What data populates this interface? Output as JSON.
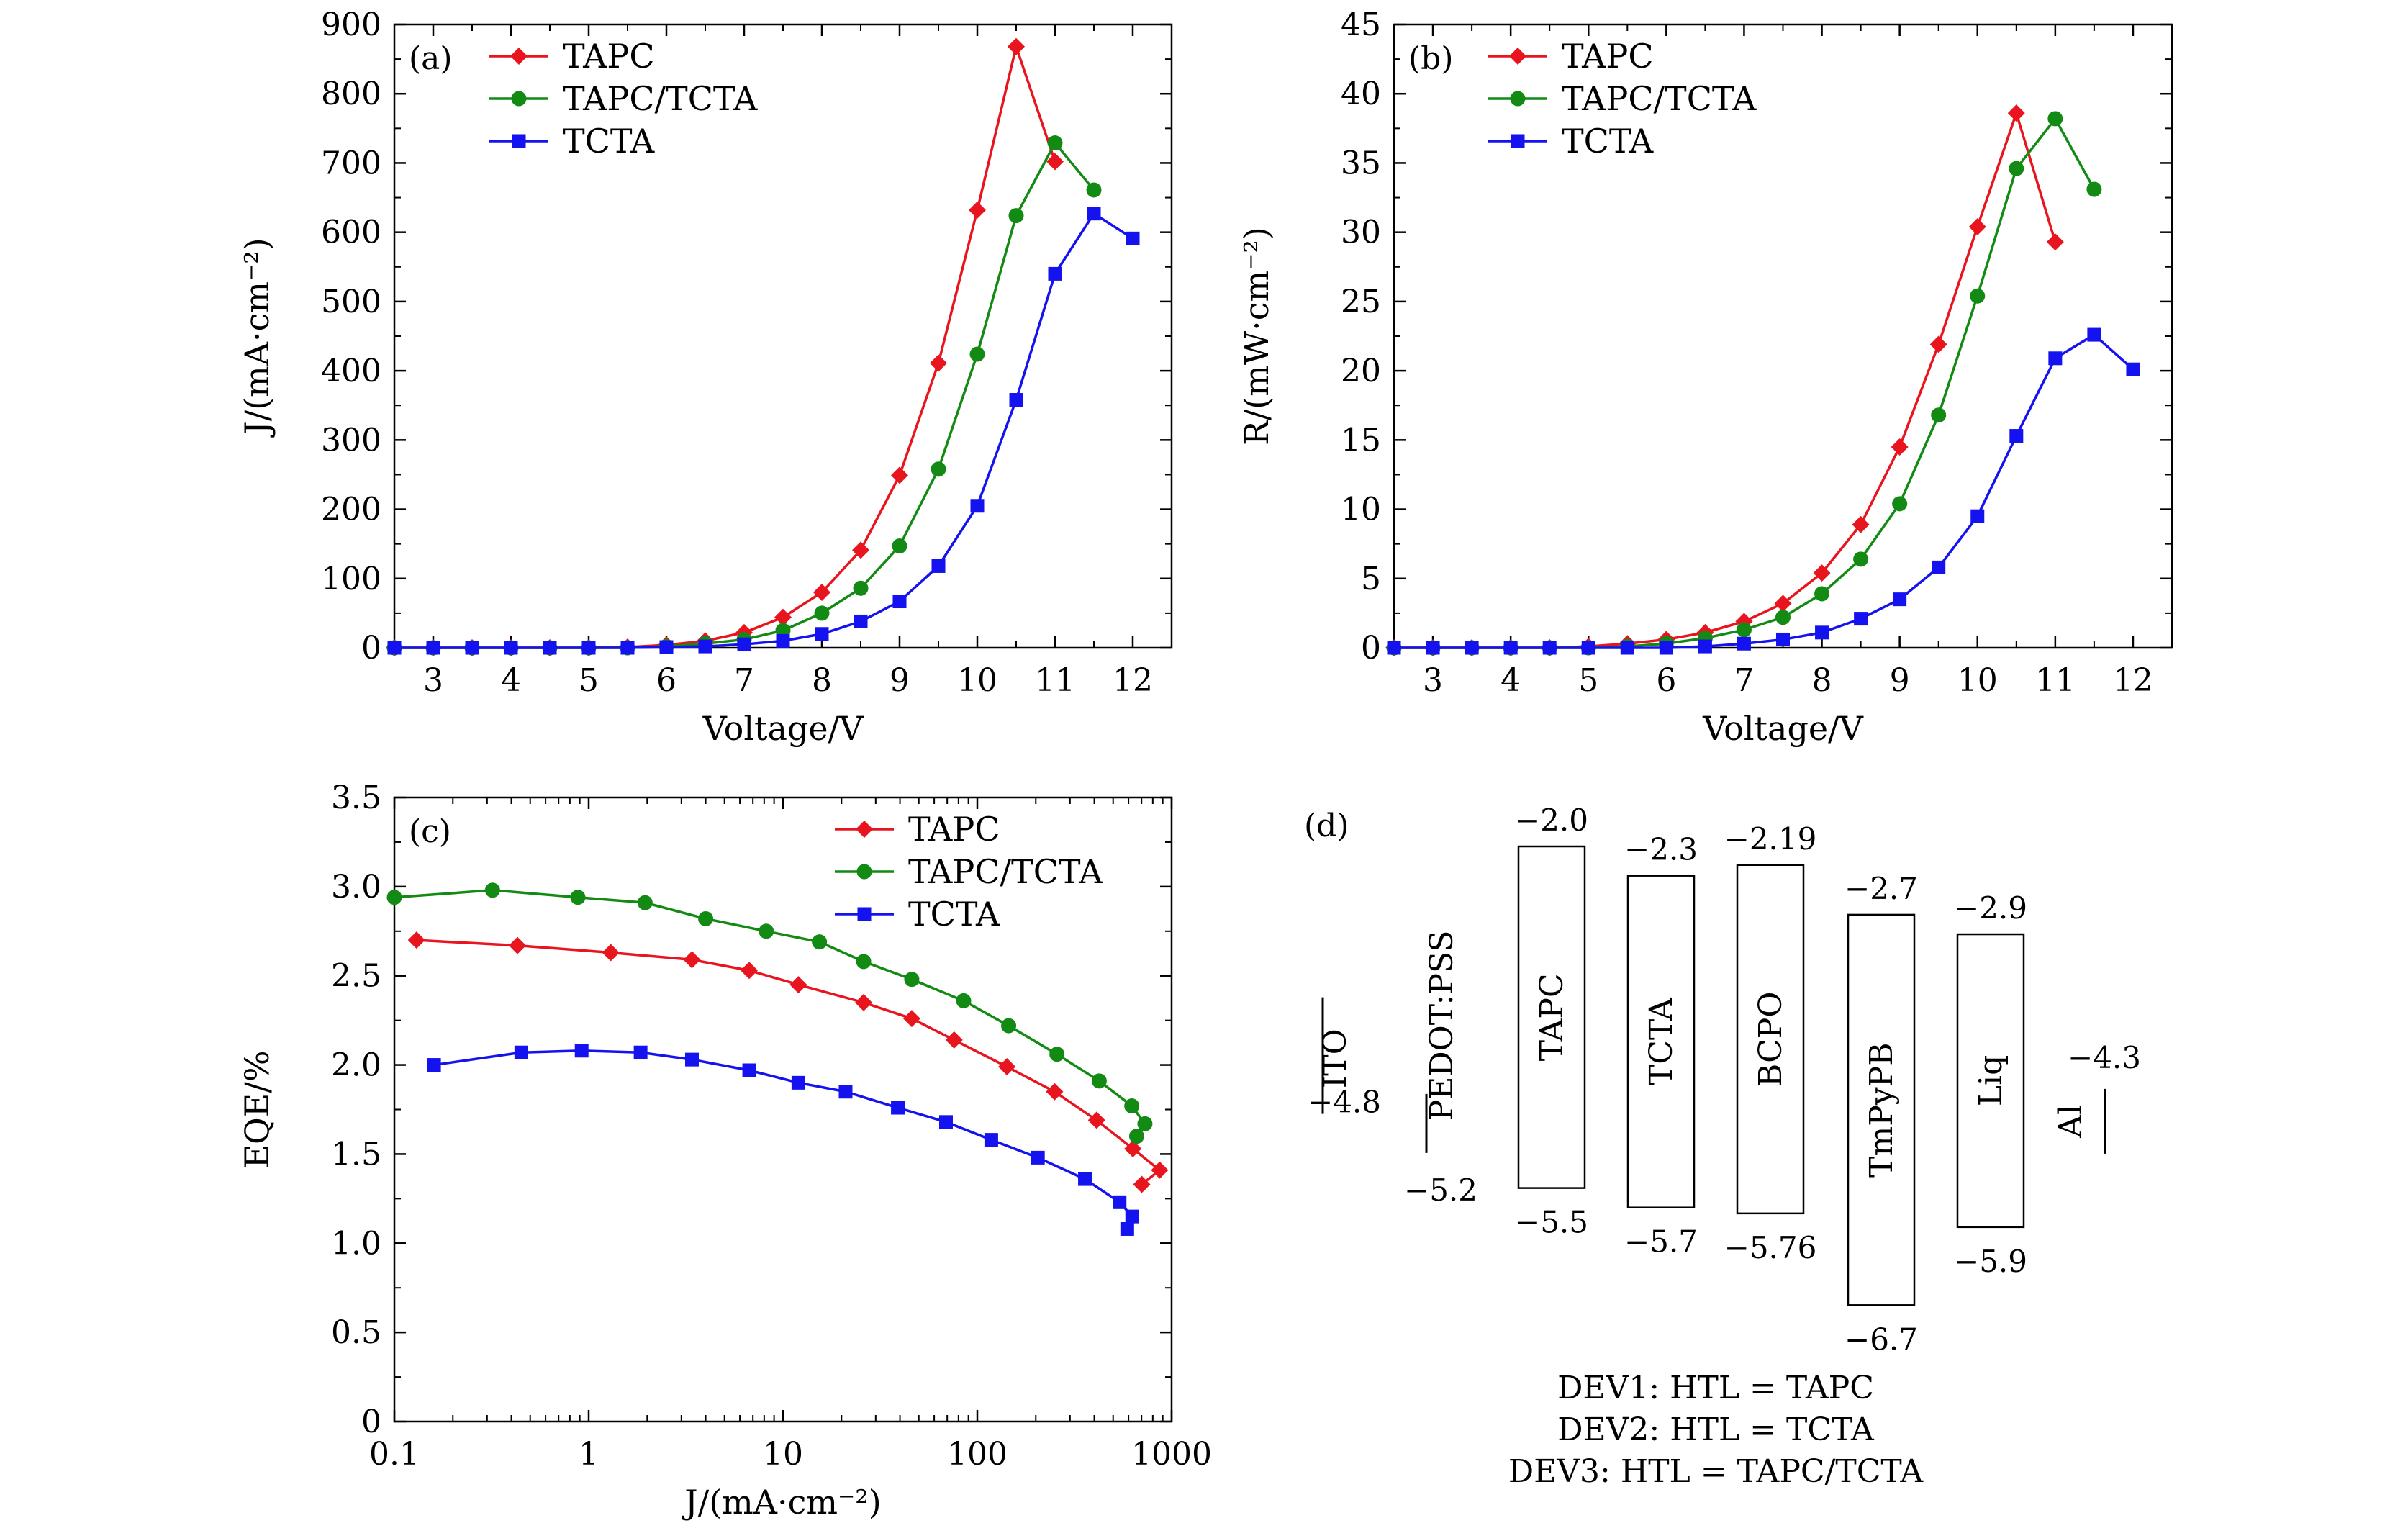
{
  "chart_data": [
    {
      "type": "line",
      "panel_label": "(a)",
      "xlabel": "Voltage/V",
      "ylabel": "J/(mA·cm⁻²)",
      "xlim": [
        2.5,
        12.5
      ],
      "ylim": [
        0,
        900
      ],
      "xticks": [
        "3",
        "4",
        "5",
        "6",
        "7",
        "8",
        "9",
        "10",
        "11",
        "12"
      ],
      "yticks": [
        "0",
        "100",
        "200",
        "300",
        "400",
        "500",
        "600",
        "700",
        "800",
        "900"
      ],
      "legend": "top-left",
      "series": [
        {
          "name": "TAPC",
          "color": "#e8141e",
          "marker": "diamond",
          "x": [
            2.5,
            3,
            3.5,
            4,
            4.5,
            5,
            5.5,
            6,
            6.5,
            7,
            7.5,
            8,
            8.5,
            9,
            9.5,
            10,
            10.5,
            11
          ],
          "y": [
            0,
            0,
            0,
            0,
            0,
            0,
            1,
            4,
            10,
            22,
            44,
            80,
            141,
            249,
            411,
            632,
            868,
            702
          ]
        },
        {
          "name": "TAPC/TCTA",
          "color": "#128a14",
          "marker": "circle",
          "x": [
            2.5,
            3,
            3.5,
            4,
            4.5,
            5,
            5.5,
            6,
            6.5,
            7,
            7.5,
            8,
            8.5,
            9,
            9.5,
            10,
            10.5,
            11,
            11.5
          ],
          "y": [
            0,
            0,
            0,
            0,
            0,
            0,
            0,
            2,
            6,
            12,
            25,
            50,
            86,
            147,
            258,
            424,
            624,
            729,
            661
          ]
        },
        {
          "name": "TCTA",
          "color": "#1512f0",
          "marker": "square",
          "x": [
            2.5,
            3,
            3.5,
            4,
            4.5,
            5,
            5.5,
            6,
            6.5,
            7,
            7.5,
            8,
            8.5,
            9,
            9.5,
            10,
            10.5,
            11,
            11.5,
            12
          ],
          "y": [
            0,
            0,
            0,
            0,
            0,
            0,
            0,
            1,
            2,
            5,
            10,
            20,
            38,
            67,
            118,
            205,
            358,
            540,
            627,
            591
          ]
        }
      ]
    },
    {
      "type": "line",
      "panel_label": "(b)",
      "xlabel": "Voltage/V",
      "ylabel": "R/(mW·cm⁻²)",
      "xlim": [
        2.5,
        12.5
      ],
      "ylim": [
        0,
        45
      ],
      "xticks": [
        "3",
        "4",
        "5",
        "6",
        "7",
        "8",
        "9",
        "10",
        "11",
        "12"
      ],
      "yticks": [
        "0",
        "5",
        "10",
        "15",
        "20",
        "25",
        "30",
        "35",
        "40",
        "45"
      ],
      "legend": "top-left",
      "series": [
        {
          "name": "TAPC",
          "color": "#e8141e",
          "marker": "diamond",
          "x": [
            2.5,
            3,
            3.5,
            4,
            4.5,
            5,
            5.5,
            6,
            6.5,
            7,
            7.5,
            8,
            8.5,
            9,
            9.5,
            10,
            10.5,
            11
          ],
          "y": [
            0,
            0,
            0,
            0,
            0,
            0.1,
            0.3,
            0.6,
            1.1,
            1.9,
            3.2,
            5.4,
            8.9,
            14.5,
            21.9,
            30.4,
            38.6,
            29.3
          ]
        },
        {
          "name": "TAPC/TCTA",
          "color": "#128a14",
          "marker": "circle",
          "x": [
            2.5,
            3,
            3.5,
            4,
            4.5,
            5,
            5.5,
            6,
            6.5,
            7,
            7.5,
            8,
            8.5,
            9,
            9.5,
            10,
            10.5,
            11,
            11.5
          ],
          "y": [
            0,
            0,
            0,
            0,
            0,
            0,
            0.1,
            0.3,
            0.7,
            1.3,
            2.2,
            3.9,
            6.4,
            10.4,
            16.8,
            25.4,
            34.6,
            38.2,
            33.1
          ]
        },
        {
          "name": "TCTA",
          "color": "#1512f0",
          "marker": "square",
          "x": [
            2.5,
            3,
            3.5,
            4,
            4.5,
            5,
            5.5,
            6,
            6.5,
            7,
            7.5,
            8,
            8.5,
            9,
            9.5,
            10,
            10.5,
            11,
            11.5,
            12
          ],
          "y": [
            0,
            0,
            0,
            0,
            0,
            0,
            0,
            0,
            0.1,
            0.3,
            0.6,
            1.1,
            2.1,
            3.5,
            5.8,
            9.5,
            15.3,
            20.9,
            22.6,
            20.1
          ]
        }
      ]
    },
    {
      "type": "line",
      "panel_label": "(c)",
      "xlabel": "J/(mA·cm⁻²)",
      "ylabel": "EQE/%",
      "xscale": "log",
      "xlim": [
        0.1,
        1000
      ],
      "ylim": [
        0,
        3.5
      ],
      "xticks": [
        "0.1",
        "1",
        "10",
        "100",
        "1000"
      ],
      "yticks": [
        "0",
        "0.5",
        "1.0",
        "1.5",
        "2.0",
        "2.5",
        "3.0",
        "3.5"
      ],
      "legend": "top-right",
      "series": [
        {
          "name": "TAPC",
          "color": "#e8141e",
          "marker": "diamond",
          "x": [
            0.13,
            0.43,
            1.3,
            3.4,
            6.7,
            12,
            26,
            46,
            76,
            142,
            250,
            411,
            632,
            868,
            702
          ],
          "y": [
            2.7,
            2.67,
            2.63,
            2.59,
            2.53,
            2.45,
            2.35,
            2.26,
            2.14,
            1.99,
            1.85,
            1.69,
            1.53,
            1.41,
            1.33
          ]
        },
        {
          "name": "TAPC/TCTA",
          "color": "#128a14",
          "marker": "circle",
          "x": [
            0.1,
            0.32,
            0.88,
            1.95,
            4.0,
            8.2,
            15.4,
            26,
            46,
            85,
            145,
            257,
            424,
            624,
            729,
            661
          ],
          "y": [
            2.94,
            2.98,
            2.94,
            2.91,
            2.82,
            2.75,
            2.69,
            2.58,
            2.48,
            2.36,
            2.22,
            2.06,
            1.91,
            1.77,
            1.67,
            1.6
          ]
        },
        {
          "name": "TCTA",
          "color": "#1512f0",
          "marker": "square",
          "x": [
            0.16,
            0.45,
            0.92,
            1.85,
            3.4,
            6.7,
            12,
            21,
            39,
            69,
            118,
            205,
            358,
            540,
            627,
            591
          ],
          "y": [
            2.0,
            2.07,
            2.08,
            2.07,
            2.03,
            1.97,
            1.9,
            1.85,
            1.76,
            1.68,
            1.58,
            1.48,
            1.36,
            1.23,
            1.15,
            1.08
          ]
        }
      ]
    }
  ],
  "diagram": {
    "panel_label": "(d)",
    "layers": [
      {
        "name": "TAPC",
        "top": "−2.0",
        "bottom": "−5.5",
        "lumo": -2.0,
        "homo": -5.5
      },
      {
        "name": "TCTA",
        "top": "−2.3",
        "bottom": "−5.7",
        "lumo": -2.3,
        "homo": -5.7
      },
      {
        "name": "BCPO",
        "top": "−2.19",
        "bottom": "−5.76",
        "lumo": -2.19,
        "homo": -5.76
      },
      {
        "name": "TmPyPB",
        "top": "−2.7",
        "bottom": "−6.7",
        "lumo": -2.7,
        "homo": -6.7
      },
      {
        "name": "Liq",
        "top": "−2.9",
        "bottom": "−5.9",
        "lumo": -2.9,
        "homo": -5.9
      }
    ],
    "electrodes": [
      {
        "name": "ITO",
        "value": "−4.8",
        "level": -4.8
      },
      {
        "name": "PEDOT:PSS",
        "value": "−5.2",
        "level": -5.2
      },
      {
        "name": "Al",
        "value": "−4.3",
        "level": -4.3
      }
    ],
    "devices": [
      "DEV1: HTL = TAPC",
      "DEV2: HTL = TCTA",
      "DEV3: HTL = TAPC/TCTA"
    ]
  }
}
